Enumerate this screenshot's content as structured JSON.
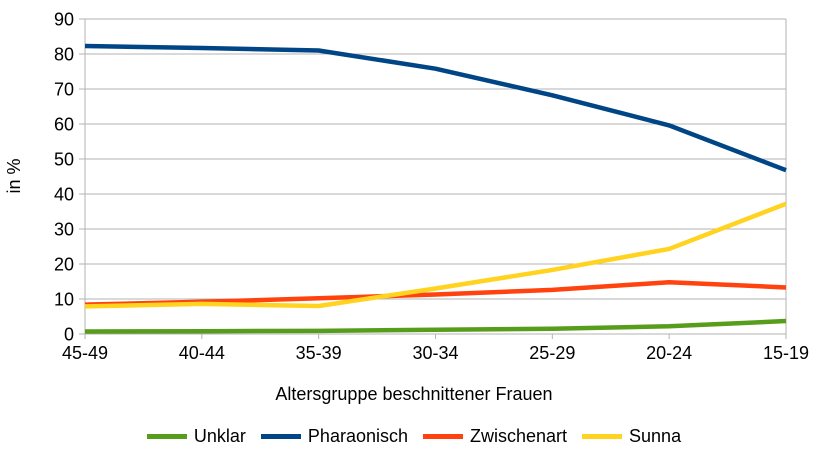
{
  "chart_data": {
    "type": "line",
    "title": "",
    "xlabel": "Altersgruppe beschnittener Frauen",
    "ylabel": "in %",
    "categories": [
      "45-49",
      "40-44",
      "35-39",
      "30-34",
      "25-29",
      "20-24",
      "15-19"
    ],
    "series": [
      {
        "name": "Unklar",
        "color": "#579D1C",
        "values": [
          0.7,
          0.8,
          0.9,
          1.2,
          1.5,
          2.2,
          3.7
        ]
      },
      {
        "name": "Pharaonisch",
        "color": "#004586",
        "values": [
          82.3,
          81.7,
          81.0,
          75.8,
          68.2,
          59.6,
          46.8
        ]
      },
      {
        "name": "Zwischenart",
        "color": "#FF420E",
        "values": [
          8.4,
          9.2,
          10.2,
          11.3,
          12.6,
          14.8,
          13.3
        ]
      },
      {
        "name": "Sunna",
        "color": "#FFD320",
        "values": [
          7.9,
          8.6,
          8.0,
          13.0,
          18.3,
          24.3,
          37.2
        ]
      }
    ],
    "ylim": [
      0,
      90
    ],
    "yticks": [
      0,
      10,
      20,
      30,
      40,
      50,
      60,
      70,
      80,
      90
    ],
    "grid": true,
    "legend_position": "bottom",
    "colors": {
      "grid": "#b3b3b3",
      "axis": "#b3b3b3",
      "text": "#000000",
      "background": "#ffffff"
    }
  }
}
